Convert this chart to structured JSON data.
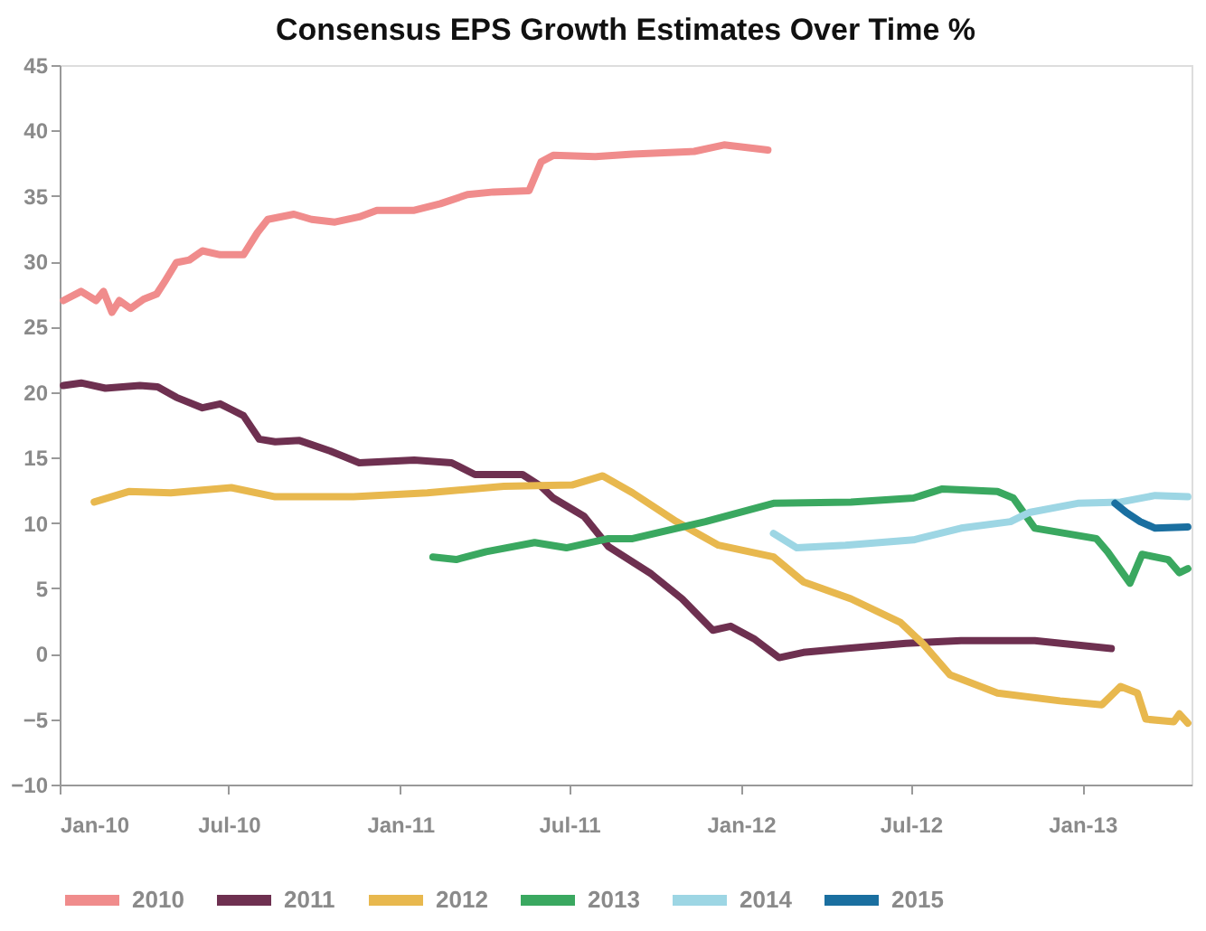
{
  "chart_data": {
    "type": "line",
    "title": "Consensus EPS Growth Estimates Over Time %",
    "xlim": [
      "2010-01-01",
      "2013-04-28"
    ],
    "xticks": [
      {
        "value": "2010-01-01",
        "label": "Jan-10"
      },
      {
        "value": "2010-07-01",
        "label": "Jul-10"
      },
      {
        "value": "2011-01-01",
        "label": "Jan-11"
      },
      {
        "value": "2011-07-01",
        "label": "Jul-11"
      },
      {
        "value": "2012-01-01",
        "label": "Jan-12"
      },
      {
        "value": "2012-07-01",
        "label": "Jul-12"
      },
      {
        "value": "2013-01-01",
        "label": "Jan-13"
      }
    ],
    "ylim": [
      -10,
      45
    ],
    "yticks": [
      -10,
      -5,
      0,
      5,
      10,
      15,
      20,
      25,
      30,
      35,
      40,
      45
    ],
    "grid": false,
    "legend": "bottom",
    "marker": "none",
    "line_style": "solid",
    "series": [
      {
        "name": "2010",
        "color": "#f08c8c",
        "x": [
          "2010-01-05",
          "2010-01-24",
          "2010-02-09",
          "2010-02-17",
          "2010-02-26",
          "2010-03-06",
          "2010-03-18",
          "2010-04-01",
          "2010-04-15",
          "2010-04-24",
          "2010-05-06",
          "2010-05-20",
          "2010-06-03",
          "2010-06-22",
          "2010-07-17",
          "2010-08-01",
          "2010-08-12",
          "2010-09-09",
          "2010-09-28",
          "2010-10-23",
          "2010-11-18",
          "2010-12-07",
          "2011-01-16",
          "2011-02-13",
          "2011-03-14",
          "2011-04-11",
          "2011-05-19",
          "2011-06-01",
          "2011-06-14",
          "2011-07-29",
          "2011-09-07",
          "2011-11-12",
          "2011-12-14",
          "2012-01-30"
        ],
        "values": [
          27.0,
          27.7,
          27.0,
          27.7,
          26.1,
          27.0,
          26.4,
          27.1,
          27.5,
          28.5,
          29.9,
          30.1,
          30.8,
          30.5,
          30.5,
          32.2,
          33.2,
          33.6,
          33.2,
          33.0,
          33.4,
          33.9,
          33.9,
          34.4,
          35.1,
          35.3,
          35.4,
          37.6,
          38.1,
          38.0,
          38.2,
          38.4,
          38.9,
          38.5
        ]
      },
      {
        "name": "2011",
        "color": "#6e3050",
        "x": [
          "2010-01-05",
          "2010-01-24",
          "2010-02-19",
          "2010-03-28",
          "2010-04-16",
          "2010-05-06",
          "2010-06-03",
          "2010-06-22",
          "2010-07-17",
          "2010-08-03",
          "2010-08-20",
          "2010-09-15",
          "2010-10-18",
          "2010-11-18",
          "2011-01-16",
          "2011-02-25",
          "2011-03-22",
          "2011-05-12",
          "2011-06-01",
          "2011-06-14",
          "2011-07-17",
          "2011-08-12",
          "2011-09-27",
          "2011-10-30",
          "2011-12-02",
          "2011-12-21",
          "2012-01-16",
          "2012-02-11",
          "2012-03-08",
          "2012-04-22",
          "2012-06-26",
          "2012-08-24",
          "2012-11-11",
          "2013-02-01"
        ],
        "values": [
          20.5,
          20.7,
          20.3,
          20.5,
          20.4,
          19.6,
          18.8,
          19.1,
          18.2,
          16.4,
          16.2,
          16.3,
          15.5,
          14.6,
          14.8,
          14.6,
          13.7,
          13.7,
          12.8,
          11.9,
          10.5,
          8.2,
          6.1,
          4.2,
          1.8,
          2.1,
          1.1,
          -0.3,
          0.1,
          0.4,
          0.8,
          1.0,
          1.0,
          0.4
        ]
      },
      {
        "name": "2012",
        "color": "#e8b84e",
        "x": [
          "2010-02-07",
          "2010-03-16",
          "2010-04-30",
          "2010-07-04",
          "2010-08-20",
          "2010-11-12",
          "2011-01-30",
          "2011-04-22",
          "2011-07-04",
          "2011-08-06",
          "2011-09-07",
          "2011-10-24",
          "2011-12-08",
          "2012-02-05",
          "2012-03-08",
          "2012-04-28",
          "2012-06-20",
          "2012-07-15",
          "2012-08-12",
          "2012-10-02",
          "2012-12-08",
          "2013-01-22",
          "2013-02-11",
          "2013-03-01",
          "2013-03-10",
          "2013-04-09",
          "2013-04-15",
          "2013-04-24"
        ],
        "values": [
          11.6,
          12.4,
          12.3,
          12.7,
          12.0,
          12.0,
          12.3,
          12.8,
          12.9,
          13.6,
          12.3,
          10.1,
          8.3,
          7.4,
          5.5,
          4.2,
          2.4,
          0.7,
          -1.6,
          -3.0,
          -3.6,
          -3.9,
          -2.5,
          -3.0,
          -5.0,
          -5.2,
          -4.6,
          -5.3
        ]
      },
      {
        "name": "2013",
        "color": "#3aa860",
        "x": [
          "2011-02-05",
          "2011-03-02",
          "2011-04-03",
          "2011-05-25",
          "2011-06-28",
          "2011-08-12",
          "2011-09-07",
          "2011-11-24",
          "2012-02-05",
          "2012-04-28",
          "2012-07-04",
          "2012-08-04",
          "2012-10-02",
          "2012-10-19",
          "2012-11-11",
          "2013-01-16",
          "2013-01-28",
          "2013-02-21",
          "2013-03-06",
          "2013-04-03",
          "2013-04-15",
          "2013-04-24"
        ],
        "values": [
          7.4,
          7.2,
          7.8,
          8.5,
          8.1,
          8.8,
          8.8,
          10.1,
          11.5,
          11.6,
          11.9,
          12.6,
          12.4,
          11.9,
          9.6,
          8.8,
          7.8,
          5.4,
          7.6,
          7.2,
          6.2,
          6.5
        ]
      },
      {
        "name": "2014",
        "color": "#9dd6e4",
        "x": [
          "2012-02-05",
          "2012-03-01",
          "2012-04-22",
          "2012-07-04",
          "2012-08-24",
          "2012-10-16",
          "2012-11-05",
          "2012-12-27",
          "2013-02-11",
          "2013-03-20",
          "2013-04-24"
        ],
        "values": [
          9.2,
          8.1,
          8.3,
          8.7,
          9.6,
          10.1,
          10.8,
          11.5,
          11.6,
          12.1,
          12.0
        ]
      },
      {
        "name": "2015",
        "color": "#1a6fa0",
        "x": [
          "2013-02-05",
          "2013-02-17",
          "2013-03-04",
          "2013-03-20",
          "2013-04-24"
        ],
        "values": [
          11.5,
          10.8,
          10.1,
          9.6,
          9.7
        ]
      }
    ]
  }
}
